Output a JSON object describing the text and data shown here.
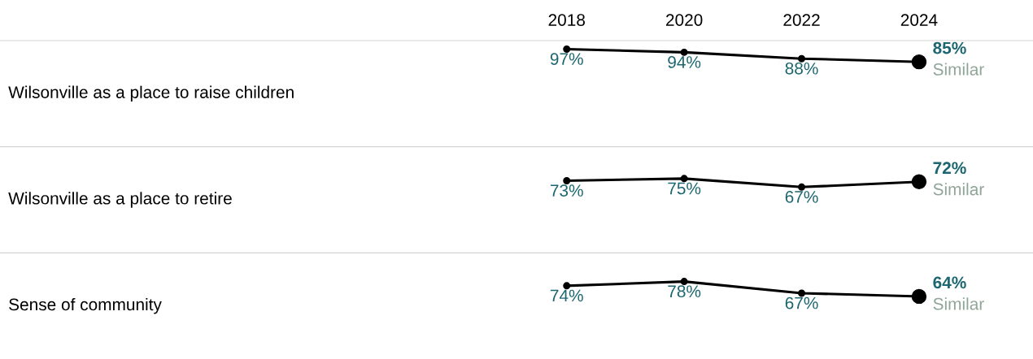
{
  "chart_data": [
    {
      "type": "line",
      "title": "Wilsonville as a place to raise children",
      "x": [
        2018,
        2020,
        2022,
        2024
      ],
      "xlim": [
        2008.35,
        2025.94
      ],
      "xticks": [
        2018,
        2020,
        2022,
        2024
      ],
      "tick_labels": "x",
      "marker": "circle",
      "grid": false,
      "series": [
        {
          "color": "#000000",
          "values": [
            97,
            94,
            88,
            85
          ],
          "value_labels": [
            "97%",
            "94%",
            "88%",
            "85%"
          ]
        }
      ],
      "annotations": [
        "Similar"
      ]
    },
    {
      "type": "line",
      "ylabel": "Wilsonville as a place to retire",
      "x": [
        2018,
        2020,
        2022,
        2024
      ],
      "tick_labels": false,
      "marker": "circle",
      "grid": false,
      "series": [
        {
          "color": "#000000",
          "values": [
            73,
            75,
            67,
            72
          ],
          "value_labels": [
            "73%",
            "75%",
            "67%",
            "72%"
          ]
        }
      ],
      "annotations": [
        "Similar"
      ]
    },
    {
      "type": "line",
      "ylabel": "Sense of community",
      "x": [
        2018,
        2020,
        2022,
        2024
      ],
      "tick_labels": false,
      "marker": "circle",
      "grid": false,
      "series": [
        {
          "color": "#000000",
          "values": [
            74,
            78,
            67,
            64
          ],
          "value_labels": [
            "74%",
            "78%",
            "67%",
            "64%"
          ]
        }
      ],
      "annotations": [
        "Similar"
      ]
    }
  ]
}
